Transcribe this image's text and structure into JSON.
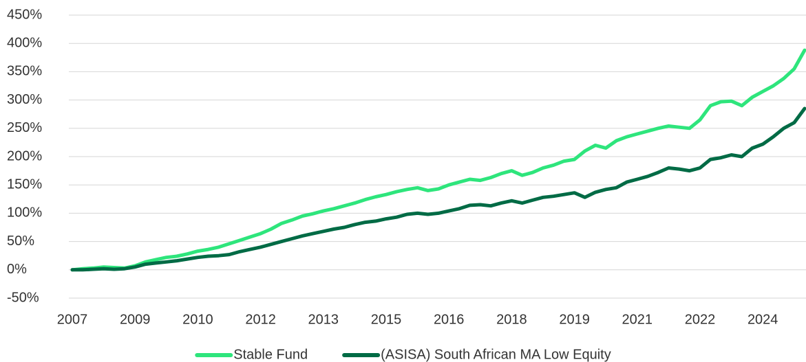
{
  "chart_data": {
    "type": "line",
    "categories": [
      "2007",
      null,
      null,
      null,
      null,
      null,
      "2009",
      null,
      null,
      null,
      null,
      null,
      "2010",
      null,
      null,
      null,
      null,
      null,
      "2012",
      null,
      null,
      null,
      null,
      null,
      "2013",
      null,
      null,
      null,
      null,
      null,
      "2015",
      null,
      null,
      null,
      null,
      null,
      "2016",
      null,
      null,
      null,
      null,
      null,
      "2018",
      null,
      null,
      null,
      null,
      null,
      "2019",
      null,
      null,
      null,
      null,
      null,
      "2021",
      null,
      null,
      null,
      null,
      null,
      "2022",
      null,
      null,
      null,
      null,
      null,
      "2024",
      null,
      null,
      null,
      null
    ],
    "series": [
      {
        "name": "Stable Fund",
        "color": "#2ee57c",
        "values": [
          0,
          2,
          3,
          5,
          4,
          3,
          7,
          14,
          18,
          22,
          24,
          28,
          33,
          36,
          40,
          46,
          52,
          58,
          64,
          72,
          82,
          88,
          95,
          99,
          104,
          108,
          113,
          118,
          124,
          129,
          133,
          138,
          142,
          145,
          140,
          143,
          150,
          155,
          160,
          158,
          163,
          170,
          175,
          167,
          172,
          180,
          185,
          192,
          195,
          210,
          220,
          215,
          228,
          235,
          240,
          245,
          250,
          254,
          252,
          250,
          265,
          290,
          297,
          298,
          290,
          305,
          315,
          325,
          338,
          355,
          388
        ]
      },
      {
        "name": "(ASISA) South African MA Low Equity",
        "color": "#006b45",
        "values": [
          0,
          0,
          1,
          2,
          1,
          2,
          5,
          10,
          12,
          14,
          16,
          19,
          22,
          24,
          25,
          27,
          32,
          36,
          40,
          45,
          50,
          55,
          60,
          64,
          68,
          72,
          75,
          80,
          84,
          86,
          90,
          93,
          98,
          100,
          98,
          100,
          104,
          108,
          114,
          115,
          113,
          118,
          122,
          118,
          123,
          128,
          130,
          133,
          136,
          128,
          137,
          142,
          145,
          155,
          160,
          165,
          172,
          180,
          178,
          175,
          180,
          195,
          198,
          203,
          200,
          215,
          222,
          235,
          250,
          260,
          285
        ]
      }
    ],
    "ylim": [
      -50,
      450
    ],
    "yticks": [
      {
        "value": -50,
        "label": "-50%"
      },
      {
        "value": 0,
        "label": "0%"
      },
      {
        "value": 50,
        "label": "50%"
      },
      {
        "value": 100,
        "label": "100%"
      },
      {
        "value": 150,
        "label": "150%"
      },
      {
        "value": 200,
        "label": "200%"
      },
      {
        "value": 250,
        "label": "250%"
      },
      {
        "value": 300,
        "label": "300%"
      },
      {
        "value": 350,
        "label": "350%"
      },
      {
        "value": 400,
        "label": "400%"
      },
      {
        "value": 450,
        "label": "450%"
      }
    ],
    "grid": true,
    "legend": "bottom"
  }
}
